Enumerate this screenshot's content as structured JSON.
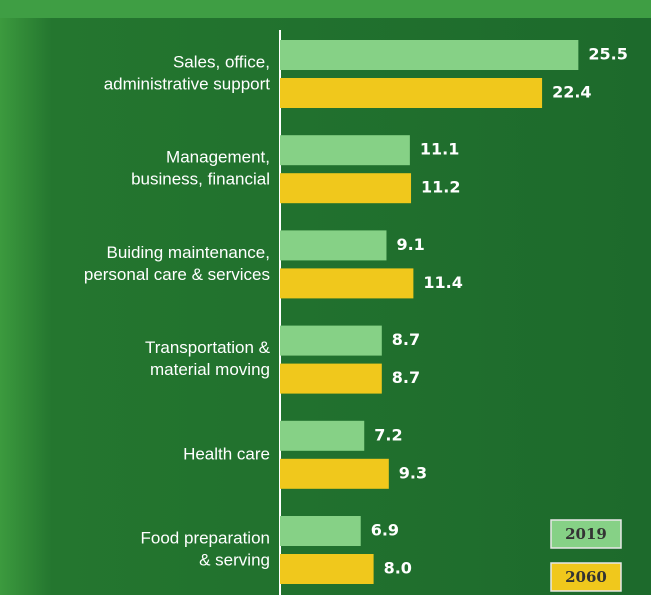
{
  "chart_data": {
    "type": "hbar",
    "categories": [
      [
        "Sales, office,",
        "administrative support"
      ],
      [
        "Management,",
        "business, financial"
      ],
      [
        "Buiding maintenance,",
        "personal care & services"
      ],
      [
        "Transportation &",
        "material moving"
      ],
      [
        "Health care"
      ],
      [
        "Food preparation",
        "& serving"
      ]
    ],
    "series": [
      {
        "name": "2019",
        "color": "#86d186",
        "values": [
          25.5,
          11.1,
          9.1,
          8.7,
          7.2,
          6.9
        ]
      },
      {
        "name": "2060",
        "color": "#f0c81c",
        "values": [
          22.4,
          11.2,
          11.4,
          8.7,
          9.3,
          8.0
        ],
        "value_labels": [
          "22.4",
          "11.2",
          "11.4",
          "8.7",
          "9.3",
          "8.0"
        ]
      }
    ],
    "xlim": [
      0,
      30
    ],
    "legend": "lower right"
  }
}
